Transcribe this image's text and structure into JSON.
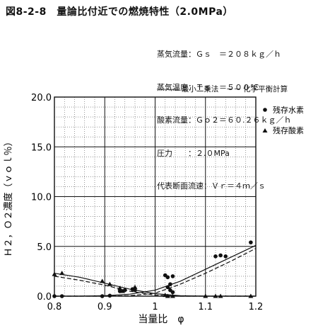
{
  "chart_data": {
    "type": "scatter",
    "title": "図8-2-8　量論比付近での燃焼特性（2.0MPa）",
    "conditions": [
      "蒸気流量：Ｇｓ　＝２０８ｋｇ／ｈ",
      "蒸気温度：Ｔｓ　＝５００℃",
      "酸素流量：Ｇｏ２＝６０.２６ｋｇ／ｈ",
      "圧力　　：２.０MPa",
      "代表断面流速：Ｖｒ＝４ｍ／ｓ"
    ],
    "method_legend": "――― 最小二乗法　－－ 化学平衡計算",
    "xlabel": "当量比　φ",
    "ylabel": "Ｈ２，Ｏ２濃度（ｖｏｌ％）",
    "xlim": [
      0.8,
      1.2
    ],
    "ylim": [
      0,
      20
    ],
    "x_ticks": [
      "0.8",
      "0.9",
      "1",
      "1.1",
      "1.2"
    ],
    "y_ticks": [
      "0.0",
      "5.0",
      "10.0",
      "15.0",
      "20.0"
    ],
    "series": [
      {
        "name": "残存水素",
        "marker": "circle",
        "points": [
          [
            0.8,
            0.0
          ],
          [
            0.815,
            0.0
          ],
          [
            0.895,
            0.0
          ],
          [
            0.91,
            0.05
          ],
          [
            0.93,
            0.5
          ],
          [
            0.94,
            0.6
          ],
          [
            0.955,
            0.7
          ],
          [
            0.96,
            0.6
          ],
          [
            1.02,
            2.1
          ],
          [
            1.025,
            1.9
          ],
          [
            1.025,
            0.9
          ],
          [
            1.03,
            0.6
          ],
          [
            1.03,
            1.2
          ],
          [
            1.035,
            2.0
          ],
          [
            1.035,
            0.4
          ],
          [
            1.12,
            4.0
          ],
          [
            1.13,
            4.1
          ],
          [
            1.14,
            4.0
          ],
          [
            1.19,
            5.4
          ]
        ]
      },
      {
        "name": "残存酸素",
        "marker": "triangle",
        "points": [
          [
            0.8,
            2.2
          ],
          [
            0.815,
            2.3
          ],
          [
            0.895,
            1.5
          ],
          [
            0.91,
            1.2
          ],
          [
            0.93,
            0.8
          ],
          [
            0.935,
            0.5
          ],
          [
            0.96,
            0.9
          ],
          [
            1.02,
            0.1
          ],
          [
            1.025,
            0.0
          ],
          [
            1.035,
            0.0
          ],
          [
            1.1,
            0.0
          ],
          [
            1.12,
            0.0
          ],
          [
            1.13,
            0.0
          ],
          [
            1.19,
            0.0
          ]
        ]
      }
    ],
    "curves": [
      {
        "style": "solid",
        "of": "H2",
        "x": [
          0.8,
          0.85,
          0.9,
          0.95,
          1.0,
          1.05,
          1.1,
          1.15,
          1.2
        ],
        "y": [
          0.0,
          0.0,
          0.05,
          0.2,
          0.6,
          1.5,
          2.7,
          3.9,
          5.1
        ]
      },
      {
        "style": "dashed",
        "of": "H2",
        "x": [
          0.8,
          0.9,
          0.95,
          1.0,
          1.05,
          1.1,
          1.15,
          1.2
        ],
        "y": [
          0.0,
          0.0,
          0.05,
          0.3,
          1.2,
          2.3,
          3.5,
          4.8
        ]
      },
      {
        "style": "solid",
        "of": "O2",
        "x": [
          0.8,
          0.85,
          0.9,
          0.95,
          1.0,
          1.05,
          1.1,
          1.2
        ],
        "y": [
          2.3,
          1.9,
          1.3,
          0.7,
          0.25,
          0.05,
          0.0,
          0.0
        ]
      },
      {
        "style": "dashed",
        "of": "O2",
        "x": [
          0.8,
          0.85,
          0.9,
          0.95,
          1.0,
          1.05,
          1.1,
          1.2
        ],
        "y": [
          2.0,
          1.6,
          1.1,
          0.5,
          0.1,
          0.0,
          0.0,
          0.0
        ]
      }
    ]
  }
}
